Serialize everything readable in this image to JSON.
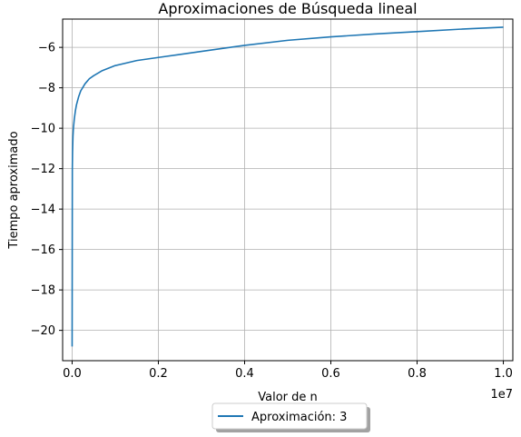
{
  "chart_data": {
    "type": "line",
    "title": "Aproximaciones de Búsqueda lineal",
    "xlabel": "Valor de n",
    "ylabel": "Tiempo aproximado",
    "x_offset_label": "1e7",
    "xlim": [
      -220000,
      10220000
    ],
    "ylim": [
      -21.5,
      -4.6
    ],
    "grid": true,
    "legend_position": "bottom-center",
    "x_ticks": [
      {
        "value": 0,
        "label": "0.0"
      },
      {
        "value": 2000000,
        "label": "0.2"
      },
      {
        "value": 4000000,
        "label": "0.4"
      },
      {
        "value": 6000000,
        "label": "0.6"
      },
      {
        "value": 8000000,
        "label": "0.8"
      },
      {
        "value": 10000000,
        "label": "1.0"
      }
    ],
    "y_ticks": [
      {
        "value": -6,
        "label": "−6"
      },
      {
        "value": -8,
        "label": "−8"
      },
      {
        "value": -10,
        "label": "−10"
      },
      {
        "value": -12,
        "label": "−12"
      },
      {
        "value": -14,
        "label": "−14"
      },
      {
        "value": -16,
        "label": "−16"
      },
      {
        "value": -18,
        "label": "−18"
      },
      {
        "value": -20,
        "label": "−20"
      }
    ],
    "series": [
      {
        "name": "Aproximación: 3",
        "color": "#1f77b4",
        "x": [
          1,
          5000,
          10000,
          20000,
          30000,
          50000,
          75000,
          100000,
          150000,
          200000,
          300000,
          400000,
          500000,
          700000,
          1000000,
          1500000,
          2000000,
          2500000,
          3000000,
          4000000,
          5000000,
          6000000,
          7000000,
          8000000,
          9000000,
          10000000
        ],
        "y": [
          -20.8,
          -12.0,
          -11.2,
          -10.4,
          -10.0,
          -9.55,
          -9.15,
          -8.85,
          -8.45,
          -8.15,
          -7.8,
          -7.55,
          -7.4,
          -7.15,
          -6.9,
          -6.65,
          -6.5,
          -6.35,
          -6.2,
          -5.9,
          -5.65,
          -5.48,
          -5.34,
          -5.22,
          -5.1,
          -5.0
        ]
      }
    ]
  }
}
